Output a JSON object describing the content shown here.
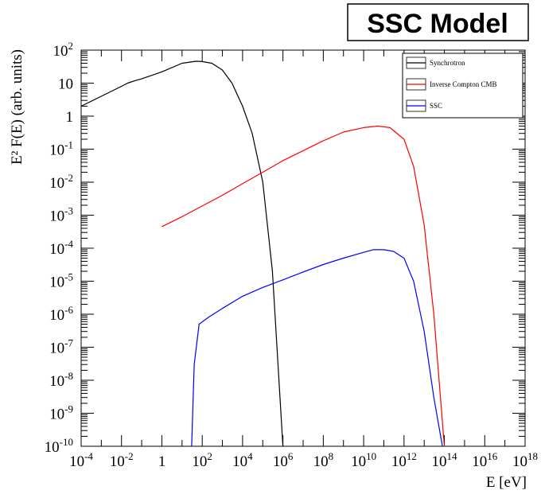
{
  "chart_data": {
    "type": "line",
    "title": "SSC Model",
    "xlabel": "E [eV]",
    "ylabel": "E² F(E) (arb. units)",
    "x_scale": "log",
    "y_scale": "log",
    "xlim": [
      0.0001,
      1e+18
    ],
    "ylim": [
      1e-10,
      100
    ],
    "x_ticks": [
      {
        "value": 0.0001,
        "base": "10",
        "exp": "-4"
      },
      {
        "value": 0.01,
        "base": "10",
        "exp": "-2"
      },
      {
        "value": 1,
        "base": "1",
        "exp": ""
      },
      {
        "value": 100,
        "base": "10",
        "exp": "2"
      },
      {
        "value": 10000,
        "base": "10",
        "exp": "4"
      },
      {
        "value": 1000000,
        "base": "10",
        "exp": "6"
      },
      {
        "value": 100000000,
        "base": "10",
        "exp": "8"
      },
      {
        "value": 10000000000,
        "base": "10",
        "exp": "10"
      },
      {
        "value": 1000000000000,
        "base": "10",
        "exp": "12"
      },
      {
        "value": 100000000000000,
        "base": "10",
        "exp": "14"
      },
      {
        "value": 10000000000000000,
        "base": "10",
        "exp": "16"
      },
      {
        "value": 1000000000000000000,
        "base": "10",
        "exp": "18"
      }
    ],
    "y_ticks": [
      {
        "value": 100,
        "base": "10",
        "exp": "2"
      },
      {
        "value": 10,
        "base": "10",
        "exp": ""
      },
      {
        "value": 1,
        "base": "1",
        "exp": ""
      },
      {
        "value": 0.1,
        "base": "10",
        "exp": "-1"
      },
      {
        "value": 0.01,
        "base": "10",
        "exp": "-2"
      },
      {
        "value": 0.001,
        "base": "10",
        "exp": "-3"
      },
      {
        "value": 0.0001,
        "base": "10",
        "exp": "-4"
      },
      {
        "value": 1e-05,
        "base": "10",
        "exp": "-5"
      },
      {
        "value": 1e-06,
        "base": "10",
        "exp": "-6"
      },
      {
        "value": 1e-07,
        "base": "10",
        "exp": "-7"
      },
      {
        "value": 1e-08,
        "base": "10",
        "exp": "-8"
      },
      {
        "value": 1e-09,
        "base": "10",
        "exp": "-9"
      },
      {
        "value": 1e-10,
        "base": "10",
        "exp": "-10"
      }
    ],
    "legend_position": "top-right",
    "grid": false,
    "series": [
      {
        "name": "Synchrotron",
        "color": "#000000",
        "points": [
          [
            0.0001,
            2.0
          ],
          [
            0.001,
            4.0
          ],
          [
            0.01,
            8.0
          ],
          [
            0.02,
            10.0
          ],
          [
            0.05,
            12.0
          ],
          [
            0.1,
            13.5
          ],
          [
            1,
            22.0
          ],
          [
            10,
            40.0
          ],
          [
            50,
            46.0
          ],
          [
            100,
            45.0
          ],
          [
            300,
            40.0
          ],
          [
            1000,
            25.0
          ],
          [
            3000,
            10.0
          ],
          [
            10000,
            2.0
          ],
          [
            30000,
            0.3
          ],
          [
            100000,
            0.01
          ],
          [
            300000,
            2e-05
          ],
          [
            1000000,
            1e-10
          ]
        ]
      },
      {
        "name": "Inverse Compton CMB",
        "color": "#ff0000",
        "points": [
          [
            1,
            0.00045
          ],
          [
            10,
            0.0009
          ],
          [
            100,
            0.0019
          ],
          [
            1000,
            0.004
          ],
          [
            10000,
            0.009
          ],
          [
            100000,
            0.02
          ],
          [
            1000000,
            0.045
          ],
          [
            10000000,
            0.09
          ],
          [
            100000000,
            0.18
          ],
          [
            1000000000,
            0.33
          ],
          [
            10000000000,
            0.45
          ],
          [
            50000000000,
            0.5
          ],
          [
            200000000000,
            0.45
          ],
          [
            1000000000000,
            0.2
          ],
          [
            3000000000000,
            0.03
          ],
          [
            10000000000000,
            0.0005
          ],
          [
            30000000000000,
            1e-06
          ],
          [
            100000000000000,
            1e-10
          ]
        ]
      },
      {
        "name": "SSC",
        "color": "#0000ff",
        "points": [
          [
            30,
            1e-10
          ],
          [
            40,
            3e-08
          ],
          [
            70,
            5e-07
          ],
          [
            200,
            8e-07
          ],
          [
            1000,
            1.5e-06
          ],
          [
            10000,
            3.5e-06
          ],
          [
            100000,
            6.5e-06
          ],
          [
            1000000,
            1.1e-05
          ],
          [
            10000000,
            1.9e-05
          ],
          [
            100000000,
            3.2e-05
          ],
          [
            1000000000,
            5e-05
          ],
          [
            10000000000,
            7.5e-05
          ],
          [
            30000000000,
            9e-05
          ],
          [
            100000000000,
            9e-05
          ],
          [
            300000000000,
            8e-05
          ],
          [
            1000000000000,
            5e-05
          ],
          [
            3000000000000,
            1e-05
          ],
          [
            10000000000000,
            3e-07
          ],
          [
            30000000000000,
            3e-09
          ],
          [
            80000000000000,
            1e-10
          ]
        ]
      }
    ]
  }
}
